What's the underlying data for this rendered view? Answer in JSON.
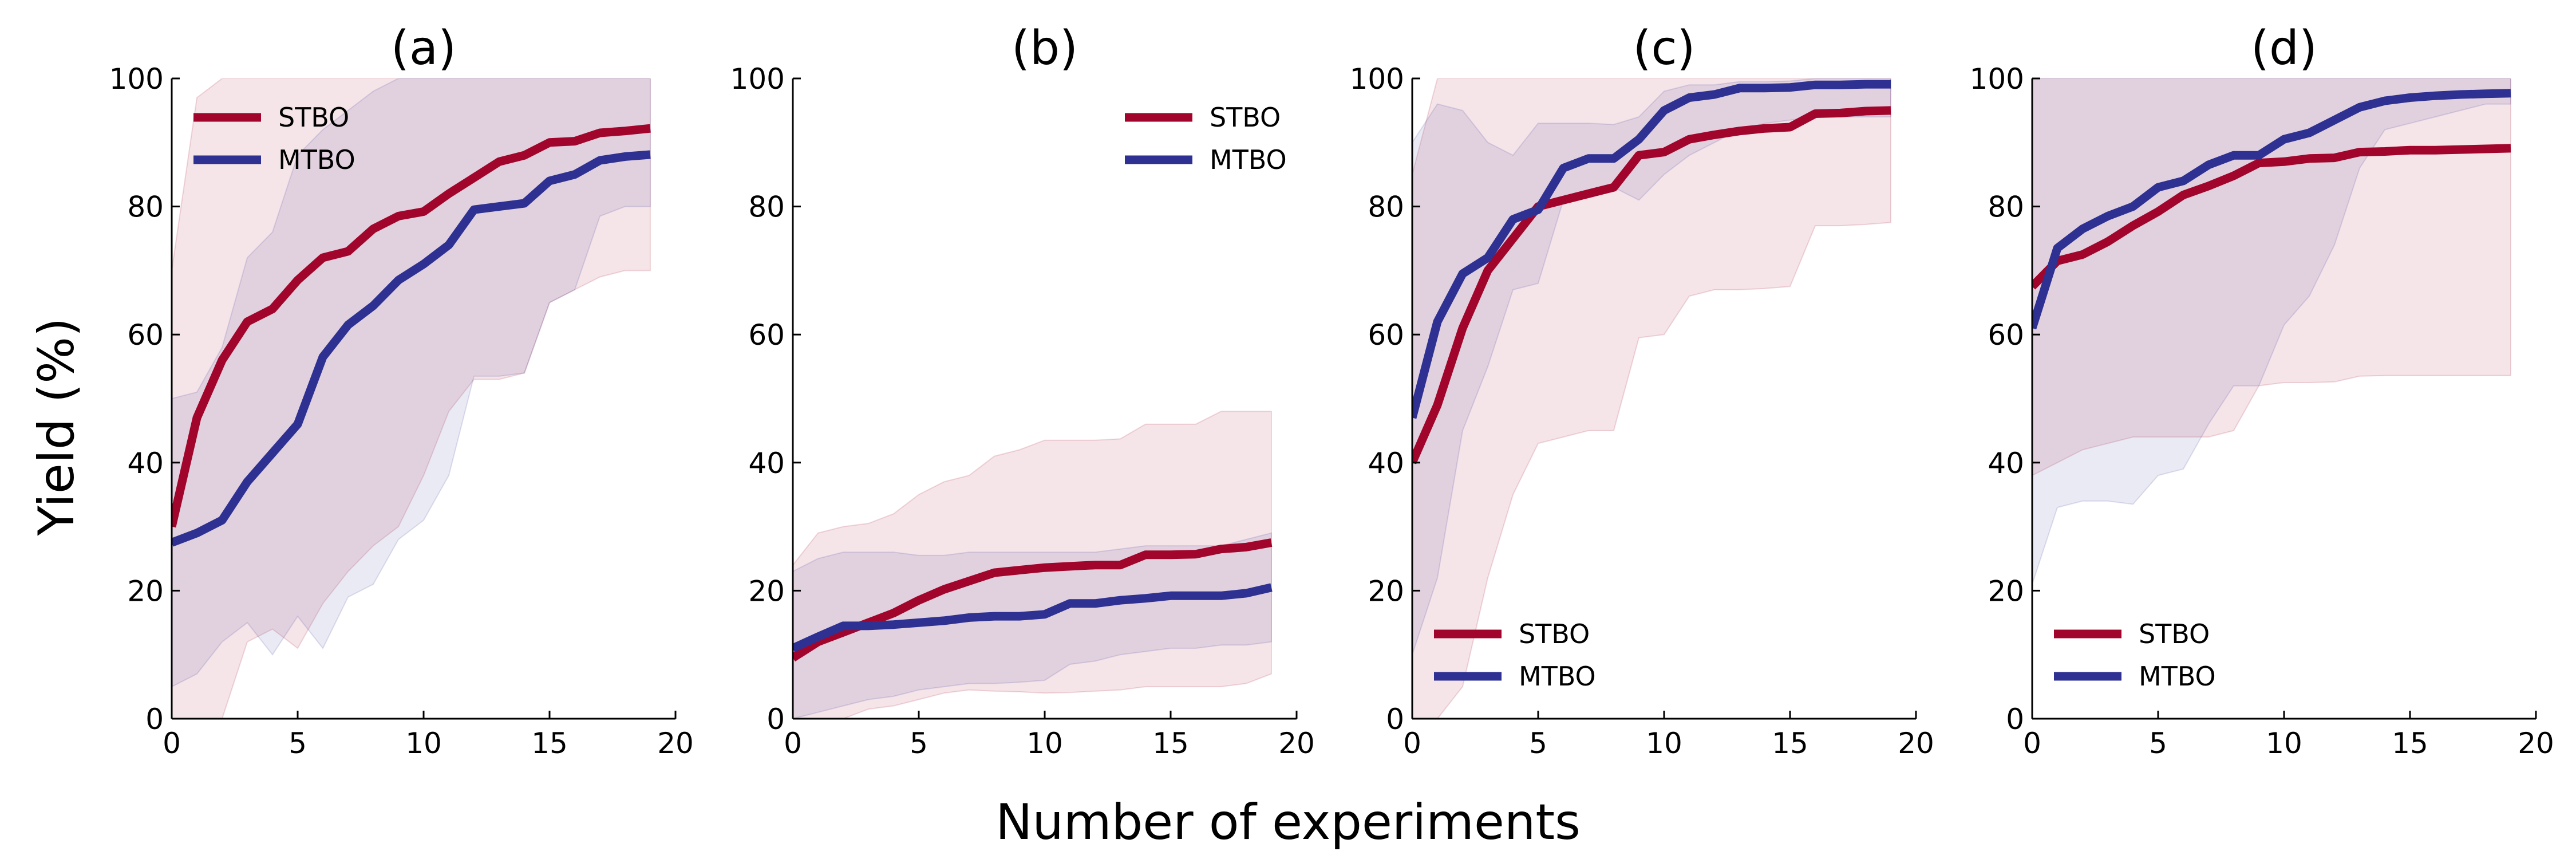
{
  "figure": {
    "ylabel": "Yield (%)",
    "xlabel": "Number of experiments"
  },
  "colors": {
    "stbo": "#A1052B",
    "mtbo": "#2E3192"
  },
  "chart_data": [
    {
      "type": "line",
      "title": "(a)",
      "xlim": [
        0,
        20
      ],
      "ylim": [
        0,
        100
      ],
      "xticks": [
        "0",
        "5",
        "10",
        "15",
        "20"
      ],
      "yticks": [
        "0",
        "20",
        "40",
        "60",
        "80",
        "100"
      ],
      "legend_position": "top-left",
      "x": [
        0,
        1,
        2,
        3,
        4,
        5,
        6,
        7,
        8,
        9,
        10,
        11,
        12,
        13,
        14,
        15,
        16,
        17,
        18,
        19
      ],
      "series": [
        {
          "name": "STBO",
          "color": "#A1052B",
          "values": [
            30,
            47,
            56,
            62,
            64,
            68.5,
            72,
            73,
            76.5,
            78.5,
            79.2,
            82,
            84.5,
            87,
            88,
            90,
            90.2,
            91.5,
            91.8,
            92.2
          ],
          "upper": [
            70,
            97,
            100,
            100,
            100,
            100,
            100,
            100,
            100,
            100,
            100,
            100,
            100,
            100,
            100,
            100,
            100,
            100,
            100,
            100
          ],
          "lower": [
            0,
            0,
            0,
            12,
            14,
            11,
            18,
            23,
            27,
            30,
            38,
            48,
            53,
            53,
            54,
            65,
            67,
            69,
            70,
            70
          ]
        },
        {
          "name": "MTBO",
          "color": "#2E3192",
          "values": [
            27.5,
            29,
            31,
            37,
            41.5,
            46,
            56.5,
            61.5,
            64.5,
            68.5,
            71,
            74,
            79.5,
            80,
            80.5,
            84,
            85,
            87.2,
            87.8,
            88.1
          ],
          "upper": [
            50,
            51,
            58,
            72,
            76,
            88,
            92,
            95,
            98,
            100,
            100,
            100,
            100,
            100,
            100,
            100,
            100,
            100,
            100,
            100
          ],
          "lower": [
            5,
            7,
            12,
            15,
            10,
            16,
            11,
            19,
            21,
            28,
            31,
            38,
            53.5,
            53.5,
            54,
            65,
            67,
            78.5,
            80,
            80
          ]
        }
      ]
    },
    {
      "type": "line",
      "title": "(b)",
      "xlim": [
        0,
        20
      ],
      "ylim": [
        0,
        100
      ],
      "xticks": [
        "0",
        "5",
        "10",
        "15",
        "20"
      ],
      "yticks": [
        "0",
        "20",
        "40",
        "60",
        "80",
        "100"
      ],
      "legend_position": "top-right",
      "x": [
        0,
        1,
        2,
        3,
        4,
        5,
        6,
        7,
        8,
        9,
        10,
        11,
        12,
        13,
        14,
        15,
        16,
        17,
        18,
        19
      ],
      "series": [
        {
          "name": "STBO",
          "color": "#A1052B",
          "values": [
            9.5,
            12,
            13.5,
            15,
            16.5,
            18.5,
            20.2,
            21.5,
            22.8,
            23.2,
            23.6,
            23.8,
            24,
            24,
            25.6,
            25.6,
            25.7,
            26.5,
            26.8,
            27.5
          ],
          "upper": [
            24,
            29,
            30,
            30.5,
            32,
            35,
            37,
            38,
            41,
            42,
            43.5,
            43.5,
            43.5,
            43.7,
            46,
            46,
            46,
            48,
            48,
            48
          ],
          "lower": [
            0,
            0,
            0,
            1.5,
            2,
            3,
            4,
            4.5,
            4.3,
            4.2,
            4,
            4.1,
            4.3,
            4.5,
            5,
            5,
            5,
            5,
            5.5,
            7
          ]
        },
        {
          "name": "MTBO",
          "color": "#2E3192",
          "values": [
            11,
            12.8,
            14.5,
            14.5,
            14.7,
            15,
            15.3,
            15.8,
            16,
            16,
            16.3,
            18,
            18,
            18.5,
            18.8,
            19.2,
            19.2,
            19.2,
            19.6,
            20.5
          ],
          "upper": [
            23,
            25,
            26,
            26,
            26,
            25.5,
            25.5,
            26,
            26,
            26,
            26,
            26,
            26,
            26.5,
            27,
            27,
            27,
            27,
            28,
            29
          ],
          "lower": [
            0,
            1,
            2,
            3,
            3.5,
            4.5,
            5,
            5.5,
            5.5,
            5.7,
            6,
            8.5,
            9,
            10,
            10.5,
            11,
            11,
            11.5,
            11.5,
            12
          ]
        }
      ]
    },
    {
      "type": "line",
      "title": "(c)",
      "xlim": [
        0,
        20
      ],
      "ylim": [
        0,
        100
      ],
      "xticks": [
        "0",
        "5",
        "10",
        "15",
        "20"
      ],
      "yticks": [
        "0",
        "20",
        "40",
        "60",
        "80",
        "100"
      ],
      "legend_position": "bottom-left",
      "x": [
        0,
        1,
        2,
        3,
        4,
        5,
        6,
        7,
        8,
        9,
        10,
        11,
        12,
        13,
        14,
        15,
        16,
        17,
        18,
        19
      ],
      "series": [
        {
          "name": "STBO",
          "color": "#A1052B",
          "values": [
            40,
            49,
            61,
            70,
            75,
            80,
            81,
            82,
            83,
            88,
            88.5,
            90.5,
            91.2,
            91.8,
            92.2,
            92.4,
            94.5,
            94.6,
            94.9,
            95
          ],
          "upper": [
            85,
            100,
            100,
            100,
            100,
            100,
            100,
            100,
            100,
            100,
            100,
            100,
            100,
            100,
            100,
            100,
            100,
            100,
            100,
            100
          ],
          "lower": [
            0,
            0,
            5,
            22,
            35,
            43,
            44,
            45,
            45,
            59.5,
            60,
            66,
            67,
            67,
            67.2,
            67.5,
            77,
            77,
            77.2,
            77.5
          ]
        },
        {
          "name": "MTBO",
          "color": "#2E3192",
          "values": [
            47,
            62,
            69.5,
            72,
            78,
            79.5,
            86,
            87.5,
            87.5,
            90.5,
            95,
            97,
            97.5,
            98.5,
            98.5,
            98.6,
            99,
            99,
            99.1,
            99.1
          ],
          "upper": [
            90,
            96,
            95,
            90,
            88,
            93,
            93,
            93,
            92.8,
            94,
            98,
            99,
            99,
            99.5,
            99.5,
            99.6,
            100,
            100,
            100,
            100
          ],
          "lower": [
            10,
            22,
            45,
            55,
            67,
            68,
            81,
            82,
            83,
            81,
            85,
            88,
            90,
            92,
            93,
            93.5,
            94,
            94,
            94,
            94
          ]
        }
      ]
    },
    {
      "type": "line",
      "title": "(d)",
      "xlim": [
        0,
        20
      ],
      "ylim": [
        0,
        100
      ],
      "xticks": [
        "0",
        "5",
        "10",
        "15",
        "20"
      ],
      "yticks": [
        "0",
        "20",
        "40",
        "60",
        "80",
        "100"
      ],
      "legend_position": "bottom-left",
      "x": [
        0,
        1,
        2,
        3,
        4,
        5,
        6,
        7,
        8,
        9,
        10,
        11,
        12,
        13,
        14,
        15,
        16,
        17,
        18,
        19
      ],
      "series": [
        {
          "name": "STBO",
          "color": "#A1052B",
          "values": [
            67.5,
            71.5,
            72.5,
            74.5,
            77,
            79.2,
            81.8,
            83.2,
            84.8,
            86.8,
            87,
            87.5,
            87.6,
            88.5,
            88.6,
            88.8,
            88.8,
            88.9,
            89,
            89.1
          ],
          "upper": [
            100,
            100,
            100,
            100,
            100,
            100,
            100,
            100,
            100,
            100,
            100,
            100,
            100,
            100,
            100,
            100,
            100,
            100,
            100,
            100
          ],
          "lower": [
            38,
            40,
            42,
            43,
            44,
            44,
            44,
            44,
            45,
            52,
            52.5,
            52.5,
            52.6,
            53.5,
            53.6,
            53.6,
            53.6,
            53.6,
            53.6,
            53.6
          ]
        },
        {
          "name": "MTBO",
          "color": "#2E3192",
          "values": [
            61,
            73.5,
            76.5,
            78.5,
            80,
            83,
            84,
            86.5,
            88,
            88,
            90.5,
            91.5,
            93.5,
            95.5,
            96.5,
            97,
            97.3,
            97.5,
            97.6,
            97.7
          ],
          "upper": [
            100,
            100,
            100,
            100,
            100,
            100,
            100,
            100,
            100,
            100,
            100,
            100,
            100,
            100,
            100,
            100,
            100,
            100,
            100,
            100
          ],
          "lower": [
            21,
            33,
            34,
            34,
            33.5,
            38,
            39,
            46,
            52,
            52,
            61.5,
            66,
            74,
            86,
            92,
            93,
            94,
            95,
            96,
            96
          ]
        }
      ]
    }
  ]
}
